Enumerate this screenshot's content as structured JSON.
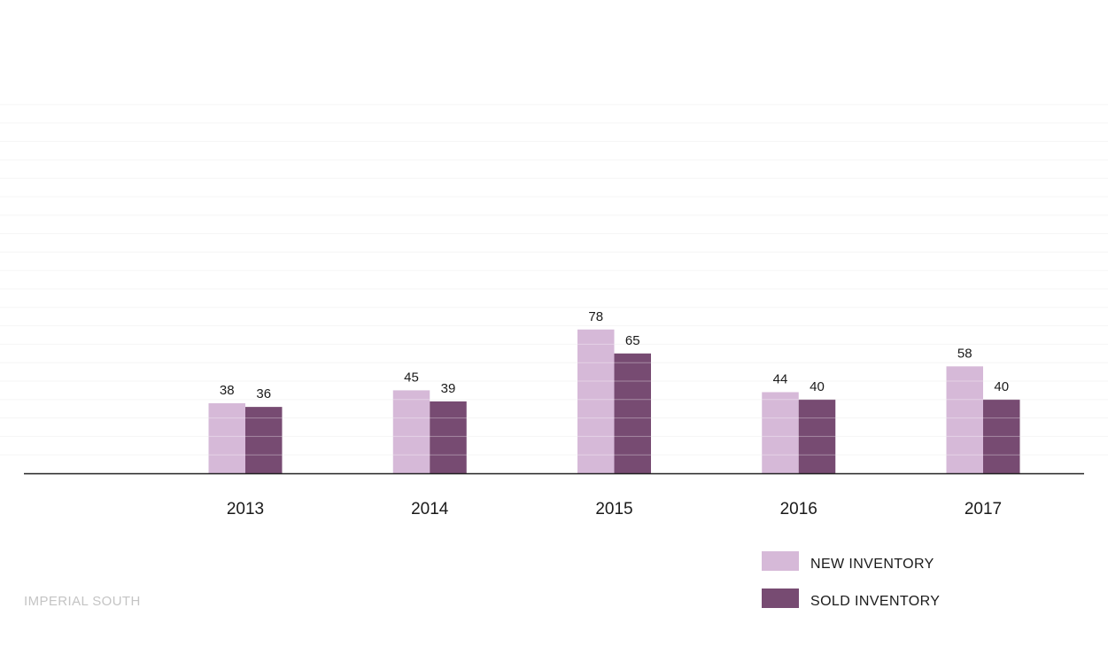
{
  "chart_data": {
    "type": "bar",
    "categories": [
      "2013",
      "2014",
      "2015",
      "2016",
      "2017"
    ],
    "series": [
      {
        "name": "NEW INVENTORY",
        "values": [
          38,
          45,
          78,
          44,
          58
        ],
        "color": "#d6b9d8"
      },
      {
        "name": "SOLD INVENTORY",
        "values": [
          36,
          39,
          65,
          40,
          40
        ],
        "color": "#774b72"
      }
    ],
    "ylim": [
      0,
      200
    ],
    "grid": true,
    "legend_position": "bottom-right",
    "colors": {
      "axis": "#222222",
      "grid": "#f2f2f2"
    }
  },
  "footer": {
    "source": "IMPERIAL SOUTH"
  }
}
